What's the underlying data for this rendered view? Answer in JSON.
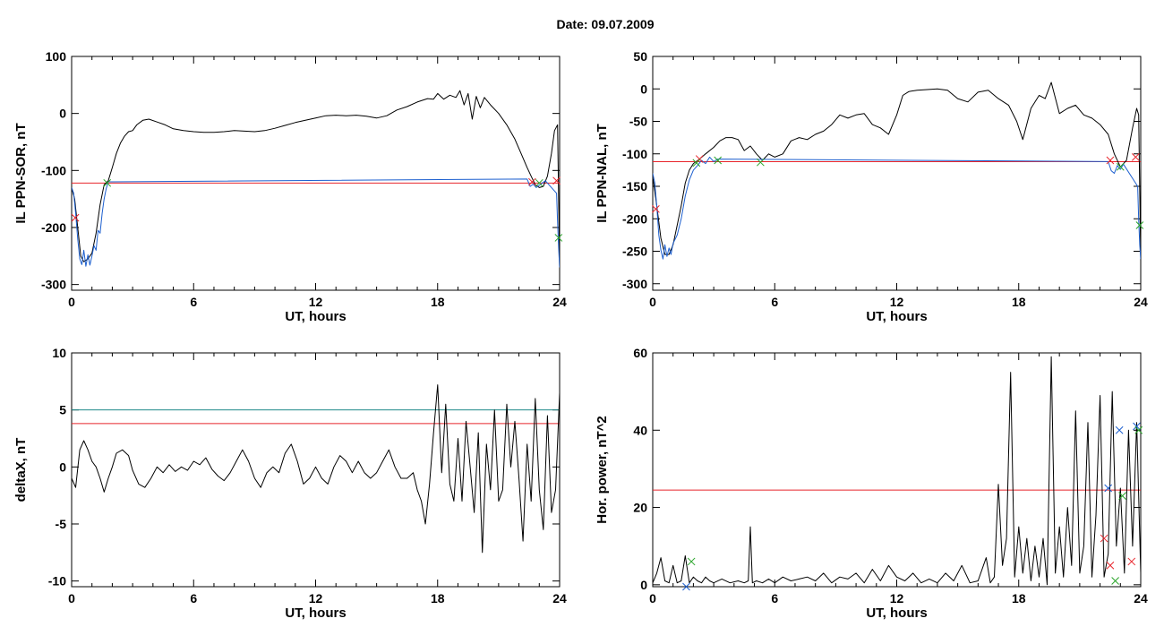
{
  "page_title": "Date:  09.07.2009",
  "chart_data": [
    {
      "type": "line",
      "id": "ppn-sor",
      "xlabel": "UT, hours",
      "ylabel": "IL PPN-SOR, nT",
      "xlim": [
        0,
        24
      ],
      "ylim": [
        -310,
        100
      ],
      "xticks": [
        0,
        6,
        12,
        18,
        24
      ],
      "yticks": [
        -300,
        -200,
        -100,
        0,
        100
      ],
      "hlines": [
        {
          "y": -122,
          "color": "#e8242b"
        }
      ],
      "series": [
        {
          "color": "#000000",
          "x": [
            0,
            0.15,
            0.3,
            0.45,
            0.6,
            0.8,
            1.0,
            1.2,
            1.4,
            1.6,
            1.8,
            2.0,
            2.2,
            2.4,
            2.6,
            2.8,
            3.0,
            3.2,
            3.5,
            3.8,
            4.2,
            4.6,
            5.0,
            5.5,
            6.0,
            6.5,
            7.0,
            7.5,
            8.0,
            8.5,
            9.0,
            9.5,
            10.0,
            10.5,
            11.0,
            11.5,
            12.0,
            12.5,
            13.0,
            13.5,
            14.0,
            14.5,
            15.0,
            15.5,
            16.0,
            16.5,
            17.0,
            17.5,
            17.8,
            18.0,
            18.3,
            18.6,
            18.9,
            19.1,
            19.3,
            19.5,
            19.7,
            19.9,
            20.1,
            20.3,
            20.6,
            21.0,
            21.4,
            21.8,
            22.1,
            22.4,
            22.6,
            22.8,
            23.0,
            23.2,
            23.4,
            23.6,
            23.75,
            23.9,
            24.0
          ],
          "y": [
            -130,
            -150,
            -200,
            -250,
            -260,
            -255,
            -245,
            -210,
            -160,
            -125,
            -118,
            -95,
            -70,
            -52,
            -40,
            -32,
            -30,
            -20,
            -12,
            -10,
            -15,
            -20,
            -27,
            -30,
            -32,
            -33,
            -33,
            -32,
            -30,
            -31,
            -32,
            -30,
            -26,
            -21,
            -16,
            -12,
            -8,
            -4,
            -3,
            -4,
            -3,
            -5,
            -8,
            -4,
            6,
            12,
            20,
            26,
            25,
            35,
            25,
            32,
            28,
            40,
            15,
            35,
            -10,
            30,
            10,
            28,
            15,
            0,
            -20,
            -45,
            -70,
            -95,
            -110,
            -125,
            -130,
            -128,
            -110,
            -70,
            -30,
            -20,
            -270
          ]
        },
        {
          "color": "#1c5fcf",
          "x": [
            0,
            0.1,
            0.2,
            0.3,
            0.4,
            0.5,
            0.6,
            0.7,
            0.8,
            0.9,
            1.0,
            1.1,
            1.2,
            1.3,
            1.4,
            1.5,
            1.6,
            1.7,
            1.8,
            22.4,
            22.55,
            22.7,
            22.85,
            23.0,
            23.15,
            23.3,
            23.85,
            23.9,
            23.95,
            24.0
          ],
          "y": [
            -130,
            -140,
            -175,
            -220,
            -255,
            -265,
            -240,
            -268,
            -248,
            -266,
            -250,
            -232,
            -240,
            -205,
            -210,
            -175,
            -150,
            -132,
            -120,
            -115,
            -128,
            -124,
            -130,
            -126,
            -122,
            -118,
            -140,
            -190,
            -235,
            -270
          ]
        }
      ],
      "markers": [
        {
          "x": 0.18,
          "y": -183,
          "color": "#e8242b"
        },
        {
          "x": 1.75,
          "y": -122,
          "color": "#2aa52a"
        },
        {
          "x": 22.65,
          "y": -120,
          "color": "#e8242b"
        },
        {
          "x": 23.0,
          "y": -122,
          "color": "#2aa52a"
        },
        {
          "x": 23.85,
          "y": -118,
          "color": "#e8242b"
        },
        {
          "x": 23.95,
          "y": -218,
          "color": "#2aa52a"
        }
      ]
    },
    {
      "type": "line",
      "id": "ppn-nal",
      "xlabel": "UT, hours",
      "ylabel": "IL PPN-NAL, nT",
      "xlim": [
        0,
        24
      ],
      "ylim": [
        -310,
        50
      ],
      "xticks": [
        0,
        6,
        12,
        18,
        24
      ],
      "yticks": [
        -300,
        -250,
        -200,
        -150,
        -100,
        -50,
        0,
        50
      ],
      "hlines": [
        {
          "y": -112,
          "color": "#e8242b"
        }
      ],
      "series": [
        {
          "color": "#000000",
          "x": [
            0,
            0.2,
            0.4,
            0.6,
            0.8,
            1.0,
            1.2,
            1.4,
            1.6,
            1.8,
            2.0,
            2.3,
            2.6,
            3.0,
            3.3,
            3.6,
            3.9,
            4.2,
            4.5,
            4.8,
            5.1,
            5.4,
            5.7,
            6.0,
            6.4,
            6.8,
            7.2,
            7.6,
            8.0,
            8.4,
            8.8,
            9.2,
            9.6,
            10.0,
            10.4,
            10.8,
            11.2,
            11.6,
            12.0,
            12.3,
            12.6,
            13.0,
            13.5,
            14.0,
            14.5,
            15.0,
            15.5,
            16.0,
            16.5,
            17.0,
            17.5,
            17.9,
            18.2,
            18.6,
            19.0,
            19.3,
            19.6,
            20.0,
            20.4,
            20.8,
            21.2,
            21.6,
            22.0,
            22.4,
            22.7,
            23.0,
            23.3,
            23.6,
            23.8,
            23.9,
            24.0
          ],
          "y": [
            -135,
            -180,
            -230,
            -255,
            -255,
            -240,
            -210,
            -180,
            -145,
            -125,
            -115,
            -108,
            -100,
            -90,
            -80,
            -75,
            -75,
            -78,
            -95,
            -88,
            -100,
            -110,
            -100,
            -105,
            -100,
            -80,
            -75,
            -78,
            -70,
            -65,
            -55,
            -40,
            -45,
            -40,
            -38,
            -55,
            -60,
            -70,
            -40,
            -10,
            -4,
            -2,
            -1,
            0,
            -2,
            -15,
            -20,
            -5,
            -2,
            -15,
            -25,
            -50,
            -78,
            -30,
            -10,
            -15,
            10,
            -38,
            -30,
            -25,
            -40,
            -45,
            -55,
            -70,
            -100,
            -120,
            -110,
            -60,
            -30,
            -40,
            -265
          ]
        },
        {
          "color": "#1c5fcf",
          "x": [
            0,
            0.1,
            0.2,
            0.3,
            0.4,
            0.5,
            0.6,
            0.7,
            0.8,
            0.9,
            1.0,
            1.2,
            1.4,
            1.6,
            1.8,
            2.0,
            2.2,
            2.4,
            2.6,
            2.8,
            3.0,
            3.2,
            22.4,
            22.55,
            22.7,
            22.85,
            23.0,
            23.15,
            23.85,
            23.9,
            23.95,
            24.0
          ],
          "y": [
            -130,
            -145,
            -180,
            -225,
            -248,
            -262,
            -240,
            -258,
            -245,
            -255,
            -238,
            -225,
            -200,
            -165,
            -140,
            -125,
            -118,
            -110,
            -115,
            -105,
            -112,
            -108,
            -112,
            -126,
            -130,
            -118,
            -124,
            -116,
            -150,
            -200,
            -240,
            -262
          ]
        }
      ],
      "markers": [
        {
          "x": 0.15,
          "y": -185,
          "color": "#e8242b"
        },
        {
          "x": 2.3,
          "y": -108,
          "color": "#e8242b"
        },
        {
          "x": 2.15,
          "y": -114,
          "color": "#2aa52a"
        },
        {
          "x": 3.2,
          "y": -110,
          "color": "#2aa52a"
        },
        {
          "x": 5.3,
          "y": -113,
          "color": "#2aa52a"
        },
        {
          "x": 22.5,
          "y": -110,
          "color": "#e8242b"
        },
        {
          "x": 23.0,
          "y": -120,
          "color": "#2aa52a"
        },
        {
          "x": 23.75,
          "y": -105,
          "color": "#e8242b"
        },
        {
          "x": 23.95,
          "y": -210,
          "color": "#2aa52a"
        }
      ]
    },
    {
      "type": "line",
      "id": "deltax",
      "xlabel": "UT, hours",
      "ylabel": "deltaX, nT",
      "xlim": [
        0,
        24
      ],
      "ylim": [
        -10.5,
        10
      ],
      "xticks": [
        0,
        6,
        12,
        18,
        24
      ],
      "yticks": [
        -10,
        -5,
        0,
        5,
        10
      ],
      "hlines": [
        {
          "y": 5.0,
          "color": "#1f8a8a"
        },
        {
          "y": 3.8,
          "color": "#e8242b"
        }
      ],
      "series": [
        {
          "color": "#000000",
          "x": [
            0,
            0.2,
            0.4,
            0.6,
            0.8,
            1.0,
            1.2,
            1.4,
            1.6,
            1.8,
            2.0,
            2.2,
            2.5,
            2.8,
            3.0,
            3.3,
            3.6,
            3.9,
            4.2,
            4.5,
            4.8,
            5.1,
            5.4,
            5.7,
            6.0,
            6.3,
            6.6,
            6.9,
            7.2,
            7.5,
            7.8,
            8.1,
            8.4,
            8.7,
            9.0,
            9.3,
            9.6,
            9.9,
            10.2,
            10.5,
            10.8,
            11.1,
            11.4,
            11.7,
            12.0,
            12.3,
            12.6,
            12.9,
            13.2,
            13.5,
            13.8,
            14.1,
            14.4,
            14.7,
            15.0,
            15.3,
            15.6,
            15.9,
            16.2,
            16.5,
            16.8,
            17.0,
            17.2,
            17.4,
            17.6,
            17.8,
            18.0,
            18.2,
            18.4,
            18.6,
            18.8,
            19.0,
            19.2,
            19.4,
            19.6,
            19.8,
            20.0,
            20.2,
            20.4,
            20.6,
            20.8,
            21.0,
            21.2,
            21.4,
            21.6,
            21.8,
            22.0,
            22.2,
            22.4,
            22.6,
            22.8,
            23.0,
            23.2,
            23.4,
            23.6,
            23.8,
            24.0
          ],
          "y": [
            -1,
            -1.8,
            1.5,
            2.3,
            1.5,
            0.5,
            0,
            -1,
            -2.2,
            -1,
            0,
            1.2,
            1.5,
            1,
            -0.3,
            -1.5,
            -1.8,
            -1,
            0,
            -0.5,
            0.2,
            -0.4,
            0,
            -0.3,
            0.5,
            0.2,
            0.8,
            -0.2,
            -0.8,
            -1.2,
            -0.5,
            0.5,
            1.5,
            0.5,
            -1,
            -1.8,
            -0.5,
            0,
            -0.5,
            1.2,
            2,
            0.5,
            -1.5,
            -1,
            0,
            -1,
            -1.5,
            0,
            1,
            0.5,
            -0.5,
            0.5,
            -0.5,
            -1,
            -0.5,
            0.5,
            1.5,
            0,
            -1,
            -1,
            -0.5,
            -2,
            -3,
            -5,
            -1.5,
            3,
            7.2,
            -0.5,
            5.5,
            -1.5,
            -3,
            2.5,
            -3,
            4,
            0,
            -4,
            3,
            -7.5,
            2,
            -2,
            5,
            -3,
            -2,
            5.5,
            0,
            4,
            -1,
            -6.5,
            2,
            -3,
            6,
            -2,
            -5.5,
            4.5,
            -4,
            -2,
            6.5
          ]
        }
      ],
      "markers": []
    },
    {
      "type": "line",
      "id": "hor-power",
      "xlabel": "UT, hours",
      "ylabel": "Hor. power, nT^2",
      "xlim": [
        0,
        24
      ],
      "ylim": [
        -0.5,
        60
      ],
      "xticks": [
        0,
        6,
        12,
        18,
        24
      ],
      "yticks": [
        0,
        20,
        40,
        60
      ],
      "hlines": [
        {
          "y": 24.5,
          "color": "#e8242b"
        }
      ],
      "series": [
        {
          "color": "#000000",
          "x": [
            0,
            0.2,
            0.4,
            0.6,
            0.8,
            1.0,
            1.2,
            1.4,
            1.6,
            1.8,
            2.0,
            2.2,
            2.4,
            2.6,
            2.8,
            3.0,
            3.4,
            3.8,
            4.2,
            4.5,
            4.7,
            4.8,
            4.9,
            5.1,
            5.4,
            5.7,
            6.0,
            6.4,
            6.8,
            7.2,
            7.6,
            8.0,
            8.4,
            8.8,
            9.2,
            9.6,
            10.0,
            10.4,
            10.8,
            11.2,
            11.6,
            12.0,
            12.4,
            12.8,
            13.2,
            13.6,
            14.0,
            14.4,
            14.8,
            15.2,
            15.6,
            16.0,
            16.4,
            16.6,
            16.8,
            17.0,
            17.2,
            17.4,
            17.6,
            17.8,
            18.0,
            18.2,
            18.4,
            18.6,
            18.8,
            19.0,
            19.2,
            19.4,
            19.6,
            19.8,
            20.0,
            20.2,
            20.4,
            20.6,
            20.8,
            21.0,
            21.2,
            21.4,
            21.6,
            21.8,
            22.0,
            22.2,
            22.4,
            22.6,
            22.8,
            23.0,
            23.2,
            23.4,
            23.6,
            23.8,
            24.0
          ],
          "y": [
            0.5,
            3,
            7,
            1,
            0.5,
            5,
            0.5,
            1,
            7.5,
            0.5,
            2,
            1,
            0.5,
            2,
            1,
            0.5,
            1.5,
            0.5,
            1,
            0.5,
            1,
            15,
            0.5,
            1,
            0.5,
            1.5,
            0.5,
            2,
            1,
            1.5,
            2,
            1,
            3,
            0.5,
            2,
            1.5,
            3,
            0.5,
            4,
            1,
            5,
            2,
            1,
            3,
            0.5,
            1.5,
            0.5,
            3,
            1,
            5,
            0.5,
            1,
            7,
            0.5,
            2,
            26,
            5,
            12,
            55,
            2,
            15,
            3,
            12,
            1,
            10,
            2,
            12,
            0,
            59,
            3,
            15,
            2,
            20,
            5,
            45,
            3,
            10,
            42,
            2,
            18,
            49,
            2,
            8,
            50,
            10,
            25,
            3,
            40,
            10,
            42,
            3
          ]
        }
      ],
      "markers": [
        {
          "x": 1.9,
          "y": 6,
          "color": "#2aa52a"
        },
        {
          "x": 1.65,
          "y": -0.5,
          "color": "#1c5fcf"
        },
        {
          "x": 22.2,
          "y": 12,
          "color": "#e8242b"
        },
        {
          "x": 22.4,
          "y": 25,
          "color": "#1c5fcf"
        },
        {
          "x": 22.5,
          "y": 5,
          "color": "#e8242b"
        },
        {
          "x": 22.75,
          "y": 1,
          "color": "#2aa52a"
        },
        {
          "x": 22.95,
          "y": 40,
          "color": "#1c5fcf"
        },
        {
          "x": 23.1,
          "y": 23,
          "color": "#2aa52a"
        },
        {
          "x": 23.55,
          "y": 6,
          "color": "#e8242b"
        },
        {
          "x": 23.8,
          "y": 41,
          "color": "#1c5fcf"
        },
        {
          "x": 23.9,
          "y": 40,
          "color": "#2aa52a"
        }
      ]
    }
  ]
}
